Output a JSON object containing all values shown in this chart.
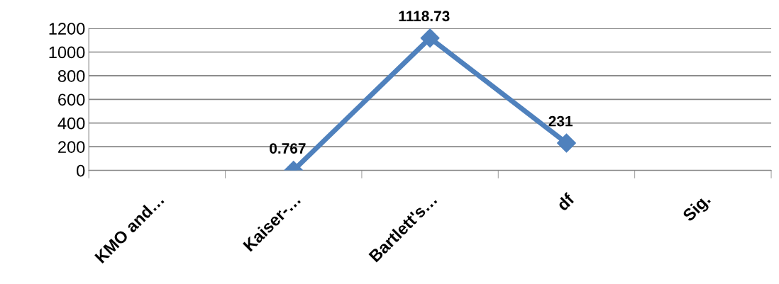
{
  "chart_data": {
    "type": "line",
    "categories": [
      "KMO and…",
      "Kaiser-…",
      "Bartlett's…",
      "df",
      "Sig."
    ],
    "series": [
      {
        "color": "#4f81bd",
        "values": [
          null,
          0.767,
          1118.73,
          231,
          null
        ]
      }
    ],
    "ylim": [
      0,
      1200
    ],
    "yticks": [
      0,
      200,
      400,
      600,
      800,
      1000,
      1200
    ],
    "grid": "y",
    "marker": "diamond",
    "line_style": "solid",
    "data_labels": true,
    "legend": false
  }
}
